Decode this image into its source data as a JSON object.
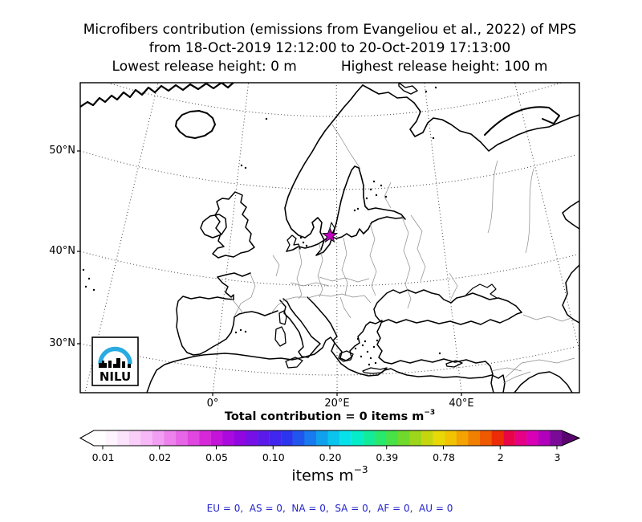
{
  "title": {
    "line1": "Microfibers contribution (emissions from Evangeliou et al., 2022) of MPS",
    "line2": "from 18-Oct-2019 12:12:00 to 20-Oct-2019 17:13:00",
    "line3_left": "Lowest release height: 0 m",
    "line3_right": "Highest release height: 100 m"
  },
  "map": {
    "yticks": [
      "50°N",
      "40°N",
      "30°N"
    ],
    "xticks": [
      "0°",
      "20°E",
      "40°E"
    ],
    "logo_text": "NILU",
    "logo_arc_color": "#29abe2",
    "marker_color": "#bf00bf"
  },
  "total_line": {
    "text_base": "Total contribution = 0 items m",
    "exponent": "−3"
  },
  "units": {
    "base": "items m",
    "exponent": "−3"
  },
  "footer": {
    "text": "EU = 0,  AS = 0,  NA = 0,  SA = 0,  AF = 0,  AU = 0",
    "color": "#2222cc"
  },
  "chart_data": {
    "type": "heatmap",
    "title": "Microfibers contribution (emissions from Evangeliou et al., 2022) of MPS",
    "subtitle": "from 18-Oct-2019 12:12:00 to 20-Oct-2019 17:13:00",
    "lowest_release_height_m": 0,
    "highest_release_height_m": 100,
    "map_region": "Europe / North Atlantic, conic-style projection with dotted graticule",
    "lat_ticks": [
      "30°N",
      "40°N",
      "50°N"
    ],
    "lon_ticks": [
      "0°",
      "20°E",
      "40°E"
    ],
    "field": "contribution field is zero everywhere (no shaded cells on map)",
    "marker": "magenta star at release site on southern Baltic coast near 20°E",
    "total_contribution_items_m3": 0,
    "region_totals": {
      "EU": 0,
      "AS": 0,
      "NA": 0,
      "SA": 0,
      "AF": 0,
      "AU": 0
    },
    "colorbar": {
      "units": "items m⁻³",
      "tick_labels": [
        "0.01",
        "0.02",
        "0.05",
        "0.10",
        "0.20",
        "0.39",
        "0.78",
        "2",
        "3"
      ],
      "scale": "discrete logarithmic-like",
      "extend_arrows": "both",
      "tip_left_color": "#ffffff",
      "tip_right_color": "#5a0570",
      "colors": [
        "#ffffff",
        "#fef4fe",
        "#fce3fc",
        "#f9cef9",
        "#f6b8f6",
        "#f29ef2",
        "#ed82ed",
        "#e765e7",
        "#e046e0",
        "#d627d8",
        "#c414da",
        "#ab0ade",
        "#9107e2",
        "#7710e6",
        "#5c1aea",
        "#4026ee",
        "#2b35ee",
        "#2056ee",
        "#187aee",
        "#11a0ee",
        "#0bc4ee",
        "#07e2ea",
        "#06ecc8",
        "#12ec9a",
        "#28e96c",
        "#48e246",
        "#70da2c",
        "#9cd51a",
        "#c6d60e",
        "#e8d806",
        "#f2c303",
        "#f4a302",
        "#f28000",
        "#ef5a00",
        "#ec2c06",
        "#e90448",
        "#e50086",
        "#d800b4",
        "#b200bc",
        "#7c0a99"
      ]
    }
  }
}
